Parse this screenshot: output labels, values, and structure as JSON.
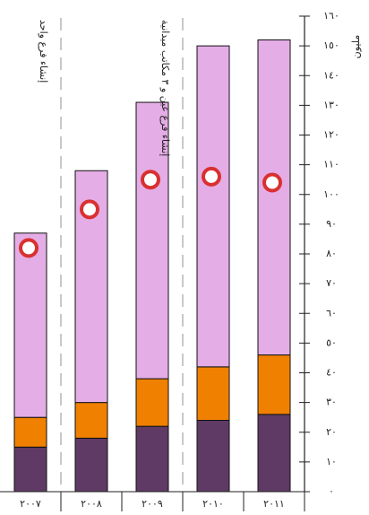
{
  "chart_data": {
    "type": "bar",
    "stacked": true,
    "categories": [
      "٢٠٠٧",
      "٢٠٠٨",
      "٢٠٠٩",
      "٢٠١٠",
      "٢٠١١"
    ],
    "series": [
      {
        "color": "#5e3a64",
        "values": [
          15,
          18,
          22,
          24,
          26
        ]
      },
      {
        "color": "#f08000",
        "values": [
          10,
          12,
          16,
          18,
          20
        ]
      },
      {
        "color": "#e4ade6",
        "values": [
          62,
          78,
          93,
          108,
          106
        ]
      }
    ],
    "markers": {
      "color": "#d93030",
      "values": [
        82,
        95,
        105,
        106,
        104
      ]
    },
    "ylim": [
      0,
      160
    ],
    "yticks": [
      "٠",
      "١٠",
      "٢٠",
      "٣٠",
      "٤٠",
      "٥٠",
      "٦٠",
      "٧٠",
      "٨٠",
      "٩٠",
      "١٠٠",
      "١١٠",
      "١٢٠",
      "١٣٠",
      "١٤٠",
      "١٥٠",
      "١٦٠"
    ],
    "ylabel": "مليون",
    "annotations": [
      {
        "after_category": 0,
        "text": "إنشاء فرع واحد"
      },
      {
        "after_category": 2,
        "text": "إنشاء فرع عين و ٣ مكاتب ميدانية"
      }
    ]
  }
}
